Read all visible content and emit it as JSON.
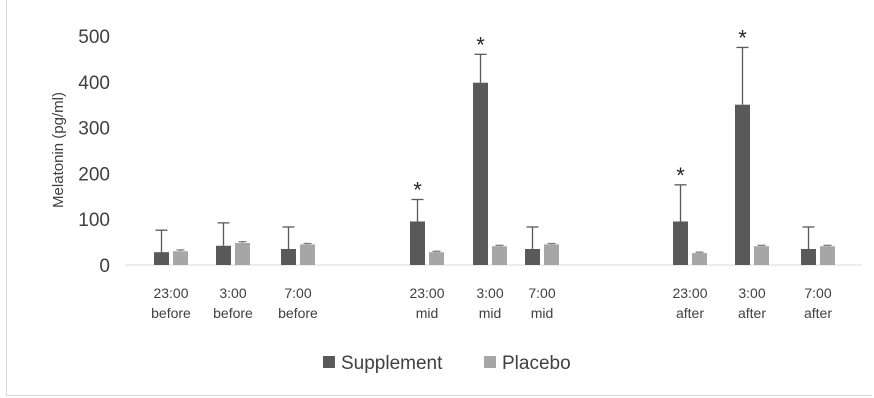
{
  "chart_data": {
    "type": "bar",
    "title": "",
    "xlabel": "",
    "ylabel": "Melatonin (pg/ml)",
    "ylim": [
      0,
      500
    ],
    "yticks": [
      0,
      100,
      200,
      300,
      400,
      500
    ],
    "grid": false,
    "legend_position": "bottom",
    "categories": [
      [
        "23:00",
        "before"
      ],
      [
        "3:00",
        "before"
      ],
      [
        "7:00",
        "before"
      ],
      [
        "23:00",
        "mid"
      ],
      [
        "3:00",
        "mid"
      ],
      [
        "7:00",
        "mid"
      ],
      [
        "23:00",
        "after"
      ],
      [
        "3:00",
        "after"
      ],
      [
        "7:00",
        "after"
      ]
    ],
    "series": [
      {
        "name": "Supplement",
        "color": "#595959",
        "values": [
          28,
          42,
          35,
          95,
          398,
          35,
          95,
          350,
          35
        ],
        "error": [
          48,
          50,
          48,
          48,
          62,
          48,
          80,
          125,
          48
        ]
      },
      {
        "name": "Placebo",
        "color": "#a6a6a6",
        "values": [
          30,
          48,
          45,
          28,
          41,
          45,
          26,
          41,
          41
        ],
        "error": [
          3,
          3,
          2,
          2,
          2,
          2,
          2,
          2,
          2
        ]
      }
    ],
    "annotations": [
      {
        "category_index": 3,
        "text": "*"
      },
      {
        "category_index": 4,
        "text": "*"
      },
      {
        "category_index": 6,
        "text": "*"
      },
      {
        "category_index": 7,
        "text": "*"
      }
    ]
  }
}
